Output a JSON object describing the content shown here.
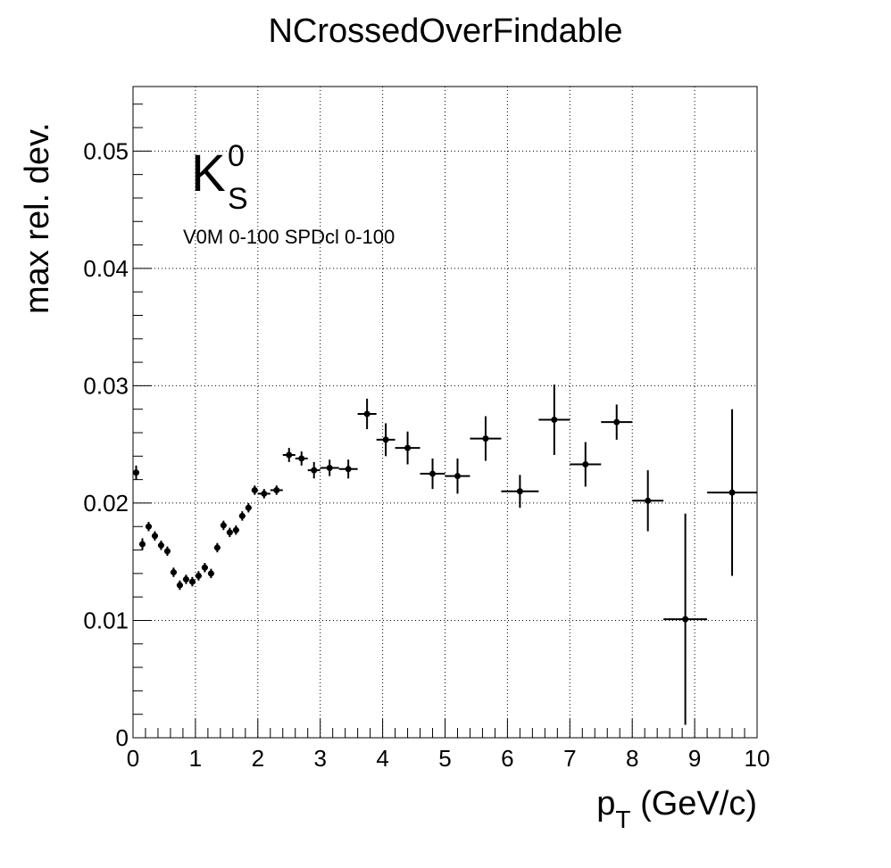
{
  "chart_data": {
    "type": "scatter",
    "title": "NCrossedOverFindable",
    "xlabel_main": "p",
    "xlabel_sub": "T",
    "xlabel_unit": " (GeV/c)",
    "ylabel": "max rel. dev.",
    "xlim": [
      0,
      10
    ],
    "ylim": [
      0,
      0.0555
    ],
    "xticks": [
      "0",
      "1",
      "2",
      "3",
      "4",
      "5",
      "6",
      "7",
      "8",
      "9",
      "10"
    ],
    "yticks": [
      "0",
      "0.01",
      "0.02",
      "0.03",
      "0.04",
      "0.05"
    ],
    "grid": true,
    "annotation_particle": "K",
    "annotation_sup": "0",
    "annotation_sub": "S",
    "annotation_selection": "V0M 0-100 SPDcl 0-100",
    "points": [
      {
        "x": 0.05,
        "y": 0.0226,
        "xerr": 0.05,
        "yerr": 0.0006
      },
      {
        "x": 0.15,
        "y": 0.0165,
        "xerr": 0.05,
        "yerr": 0.0005
      },
      {
        "x": 0.25,
        "y": 0.018,
        "xerr": 0.05,
        "yerr": 0.0004
      },
      {
        "x": 0.35,
        "y": 0.0172,
        "xerr": 0.05,
        "yerr": 0.0004
      },
      {
        "x": 0.45,
        "y": 0.0164,
        "xerr": 0.05,
        "yerr": 0.0004
      },
      {
        "x": 0.55,
        "y": 0.0159,
        "xerr": 0.05,
        "yerr": 0.0004
      },
      {
        "x": 0.65,
        "y": 0.0141,
        "xerr": 0.05,
        "yerr": 0.0004
      },
      {
        "x": 0.75,
        "y": 0.013,
        "xerr": 0.05,
        "yerr": 0.0004
      },
      {
        "x": 0.85,
        "y": 0.0135,
        "xerr": 0.05,
        "yerr": 0.0004
      },
      {
        "x": 0.95,
        "y": 0.0133,
        "xerr": 0.05,
        "yerr": 0.0004
      },
      {
        "x": 1.05,
        "y": 0.0138,
        "xerr": 0.05,
        "yerr": 0.0004
      },
      {
        "x": 1.15,
        "y": 0.0145,
        "xerr": 0.05,
        "yerr": 0.0004
      },
      {
        "x": 1.25,
        "y": 0.014,
        "xerr": 0.05,
        "yerr": 0.0004
      },
      {
        "x": 1.35,
        "y": 0.0162,
        "xerr": 0.05,
        "yerr": 0.0004
      },
      {
        "x": 1.45,
        "y": 0.0181,
        "xerr": 0.05,
        "yerr": 0.0004
      },
      {
        "x": 1.55,
        "y": 0.0175,
        "xerr": 0.05,
        "yerr": 0.0004
      },
      {
        "x": 1.65,
        "y": 0.0177,
        "xerr": 0.05,
        "yerr": 0.0004
      },
      {
        "x": 1.75,
        "y": 0.0189,
        "xerr": 0.05,
        "yerr": 0.0004
      },
      {
        "x": 1.85,
        "y": 0.0196,
        "xerr": 0.05,
        "yerr": 0.0004
      },
      {
        "x": 1.95,
        "y": 0.0211,
        "xerr": 0.05,
        "yerr": 0.0004
      },
      {
        "x": 2.1,
        "y": 0.0208,
        "xerr": 0.1,
        "yerr": 0.0004
      },
      {
        "x": 2.3,
        "y": 0.0211,
        "xerr": 0.1,
        "yerr": 0.0004
      },
      {
        "x": 2.5,
        "y": 0.0241,
        "xerr": 0.1,
        "yerr": 0.0006
      },
      {
        "x": 2.7,
        "y": 0.0238,
        "xerr": 0.1,
        "yerr": 0.0006
      },
      {
        "x": 2.9,
        "y": 0.0228,
        "xerr": 0.1,
        "yerr": 0.0007
      },
      {
        "x": 3.15,
        "y": 0.023,
        "xerr": 0.15,
        "yerr": 0.0007
      },
      {
        "x": 3.45,
        "y": 0.0229,
        "xerr": 0.15,
        "yerr": 0.0008
      },
      {
        "x": 3.75,
        "y": 0.0276,
        "xerr": 0.15,
        "yerr": 0.0013
      },
      {
        "x": 4.05,
        "y": 0.0254,
        "xerr": 0.15,
        "yerr": 0.0014
      },
      {
        "x": 4.4,
        "y": 0.0247,
        "xerr": 0.2,
        "yerr": 0.0014
      },
      {
        "x": 4.8,
        "y": 0.0225,
        "xerr": 0.2,
        "yerr": 0.0013
      },
      {
        "x": 5.2,
        "y": 0.0223,
        "xerr": 0.2,
        "yerr": 0.0015
      },
      {
        "x": 5.65,
        "y": 0.0255,
        "xerr": 0.25,
        "yerr": 0.0019
      },
      {
        "x": 6.2,
        "y": 0.021,
        "xerr": 0.3,
        "yerr": 0.0014
      },
      {
        "x": 6.75,
        "y": 0.0271,
        "xerr": 0.25,
        "yerr": 0.003
      },
      {
        "x": 7.25,
        "y": 0.0233,
        "xerr": 0.25,
        "yerr": 0.0019
      },
      {
        "x": 7.75,
        "y": 0.0269,
        "xerr": 0.25,
        "yerr": 0.0015
      },
      {
        "x": 8.25,
        "y": 0.0202,
        "xerr": 0.25,
        "yerr": 0.0026
      },
      {
        "x": 8.85,
        "y": 0.0101,
        "xerr": 0.35,
        "yerr": 0.009
      },
      {
        "x": 9.6,
        "y": 0.0209,
        "xerr": 0.4,
        "yerr": 0.0071
      }
    ]
  }
}
